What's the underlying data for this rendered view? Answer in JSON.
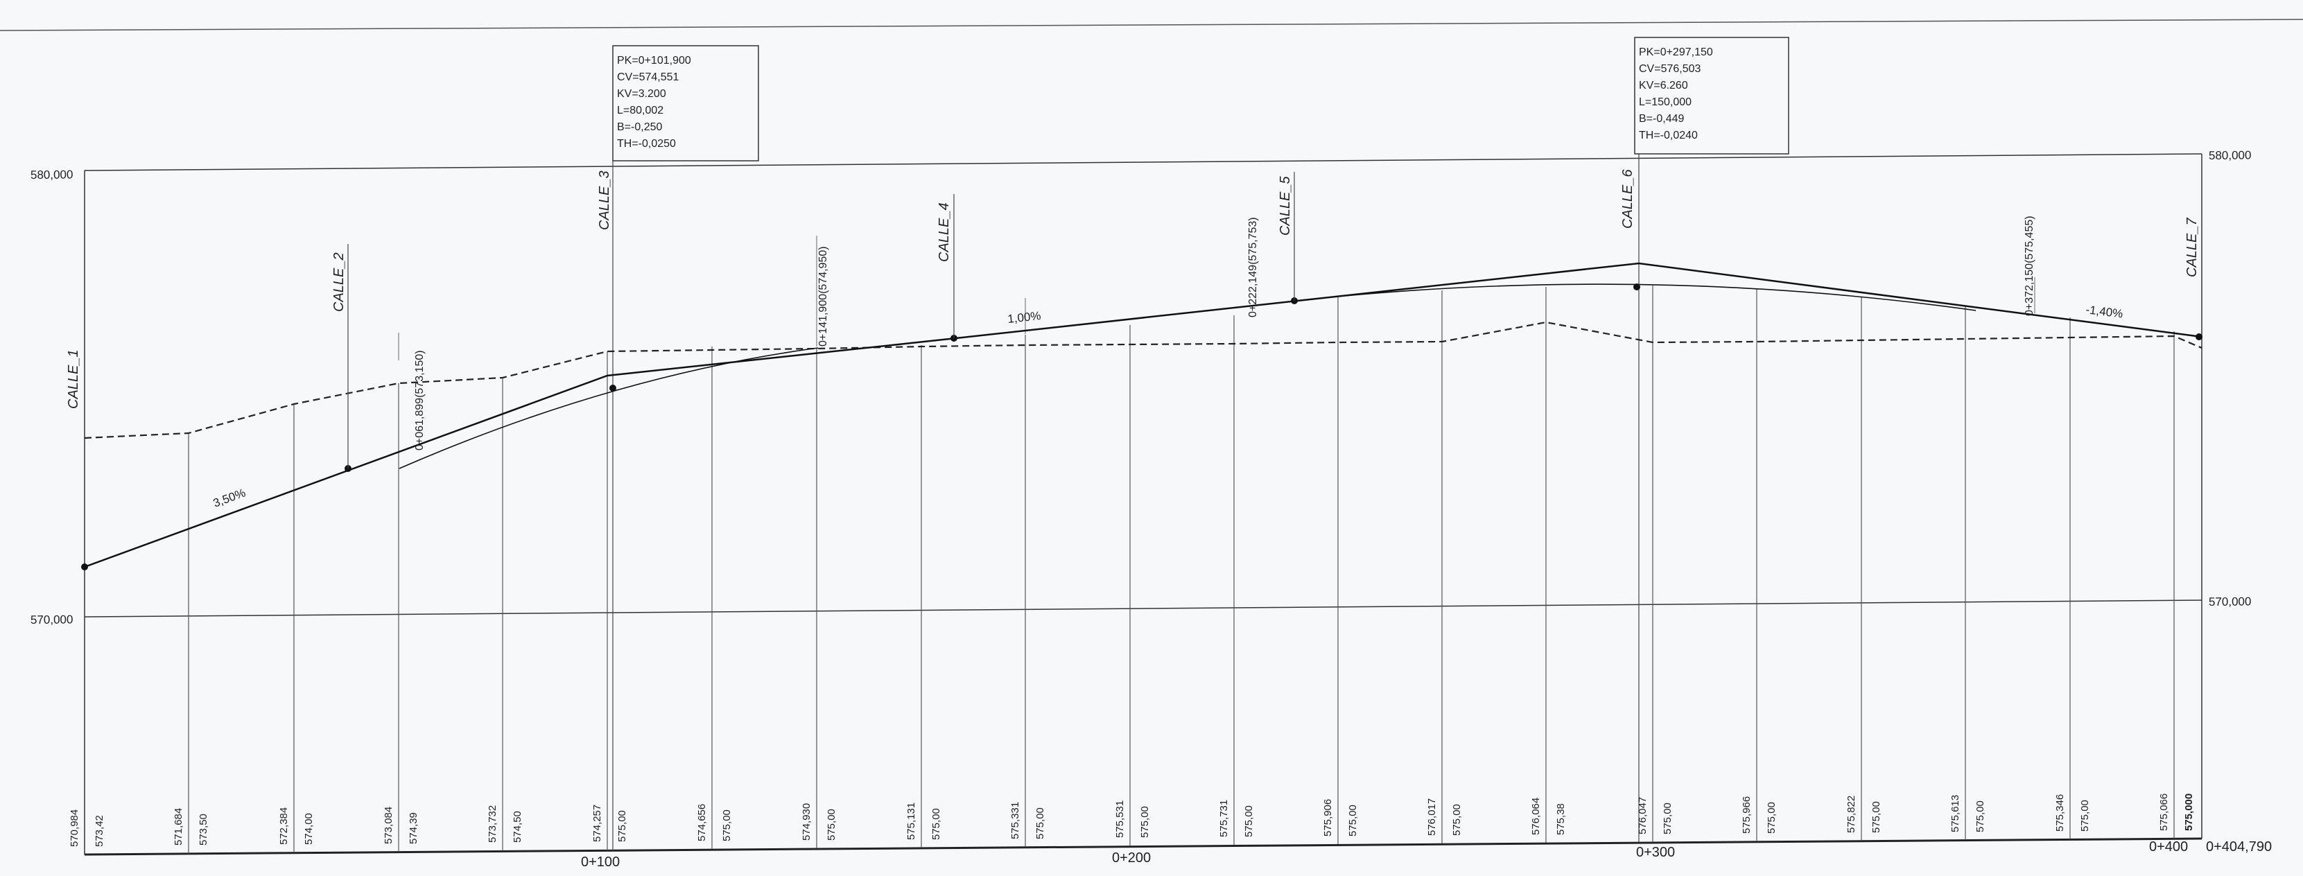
{
  "elevation_scale": {
    "top_label": "580,000",
    "bottom_label": "570,000"
  },
  "curve_boxes": [
    {
      "pk": "PK=0+101,900",
      "cv": "CV=574,551",
      "kv": "KV=3.200",
      "l": "L=80,002",
      "b": "B=-0,250",
      "th": "TH=-0,0250"
    },
    {
      "pk": "PK=0+297,150",
      "cv": "CV=576,503",
      "kv": "KV=6.260",
      "l": "L=150,000",
      "b": "B=-0,449",
      "th": "TH=-0,0240"
    }
  ],
  "street_markers": [
    "CALLE_1",
    "CALLE_2",
    "CALLE_3",
    "CALLE_4",
    "CALLE_5",
    "CALLE_6",
    "CALLE_7"
  ],
  "tangent_labels": [
    "0+061,899(573,150)",
    "0+141,900(574,950)",
    "0+222,149(575,753)",
    "0+372,150(575,455)"
  ],
  "grade_labels": [
    "3,50%",
    "1,00%",
    "-1,40%"
  ],
  "station_rows": [
    {
      "terrain": "570,984",
      "grade": "573,42"
    },
    {
      "terrain": "571,684",
      "grade": "573,50"
    },
    {
      "terrain": "572,384",
      "grade": "574,00"
    },
    {
      "terrain": "573,084",
      "grade": "574,39"
    },
    {
      "terrain": "573,732",
      "grade": "574,50"
    },
    {
      "terrain": "574,257",
      "grade": "575,00"
    },
    {
      "terrain": "574,656",
      "grade": "575,00"
    },
    {
      "terrain": "574,930",
      "grade": "575,00"
    },
    {
      "terrain": "575,131",
      "grade": "575,00"
    },
    {
      "terrain": "575,331",
      "grade": "575,00"
    },
    {
      "terrain": "575,531",
      "grade": "575,00"
    },
    {
      "terrain": "575,731",
      "grade": "575,00"
    },
    {
      "terrain": "575,906",
      "grade": "575,00"
    },
    {
      "terrain": "576,017",
      "grade": "575,00"
    },
    {
      "terrain": "576,064",
      "grade": "575,38"
    },
    {
      "terrain": "576,047",
      "grade": "575,00"
    },
    {
      "terrain": "575,966",
      "grade": "575,00"
    },
    {
      "terrain": "575,822",
      "grade": "575,00"
    },
    {
      "terrain": "575,613",
      "grade": "575,00"
    },
    {
      "terrain": "575,346",
      "grade": "575,00"
    },
    {
      "terrain": "575,066",
      "grade": "575,000"
    }
  ],
  "chainage_labels": [
    "0+100",
    "0+200",
    "0+300",
    "0+400",
    "0+404,790"
  ]
}
